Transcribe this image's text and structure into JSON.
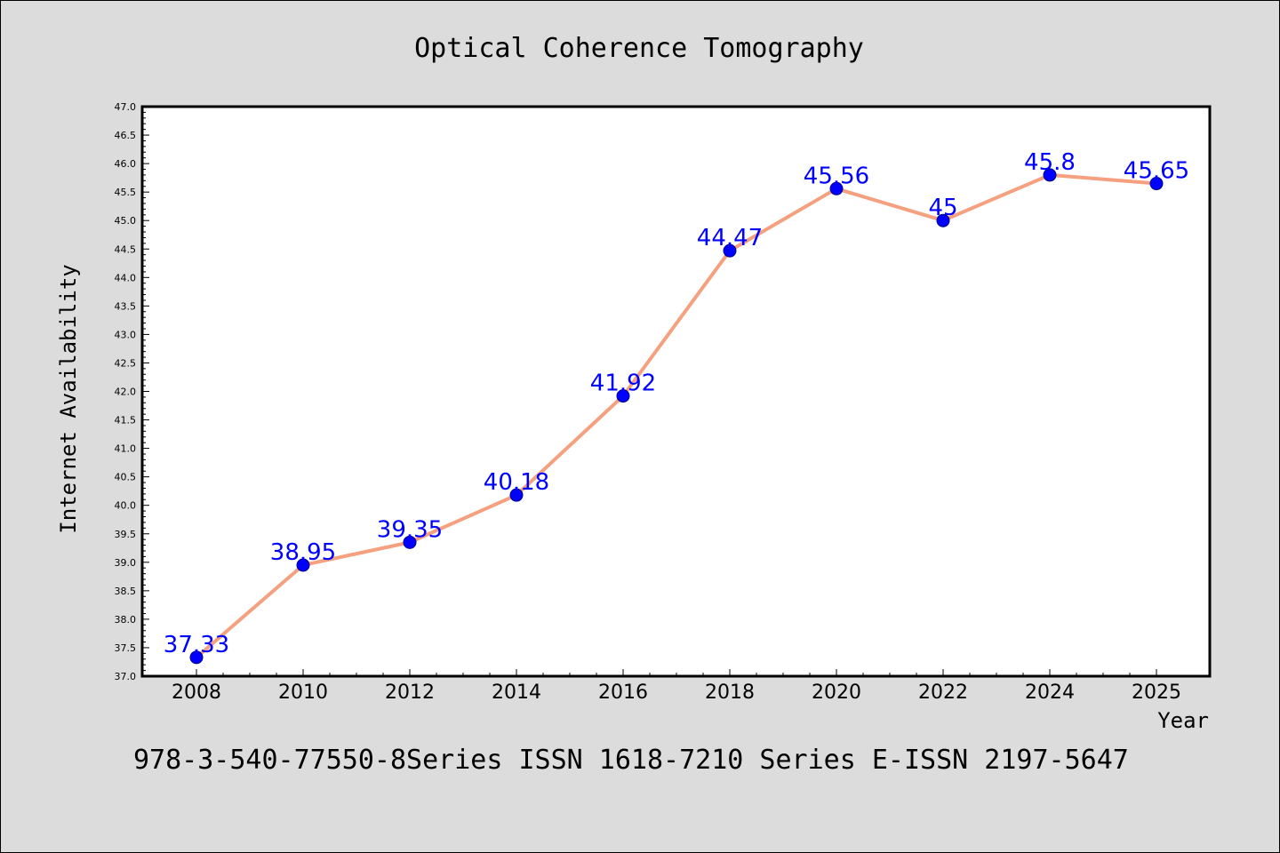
{
  "chart_data": {
    "type": "line",
    "title": "Optical Coherence Tomography",
    "xlabel": "Year",
    "ylabel": "Internet Availability",
    "categories": [
      "2008",
      "2010",
      "2012",
      "2014",
      "2016",
      "2018",
      "2020",
      "2022",
      "2024",
      "2025"
    ],
    "series": [
      {
        "values": [
          37.33,
          38.95,
          39.35,
          40.18,
          41.92,
          44.47,
          45.56,
          45,
          45.8,
          45.65
        ],
        "labels": [
          "37.33",
          "38.95",
          "39.35",
          "40.18",
          "41.92",
          "44.47",
          "45.56",
          "45",
          "45.8",
          "45.65"
        ],
        "line_color": "#f5a07f",
        "marker_color": "#0000ff"
      }
    ],
    "ylim": [
      37.0,
      47.0
    ],
    "yticks": [
      "37.0",
      "37.5",
      "38.0",
      "38.5",
      "39.0",
      "39.5",
      "40.0",
      "40.5",
      "41.0",
      "41.5",
      "42.0",
      "42.5",
      "43.0",
      "43.5",
      "44.0",
      "44.5",
      "45.0",
      "45.5",
      "46.0",
      "46.5",
      "47.0"
    ],
    "grid": false,
    "legend": "none"
  },
  "footer": {
    "text": "978-3-540-77550-8Series ISSN 1618-7210 Series E-ISSN 2197-5647"
  }
}
